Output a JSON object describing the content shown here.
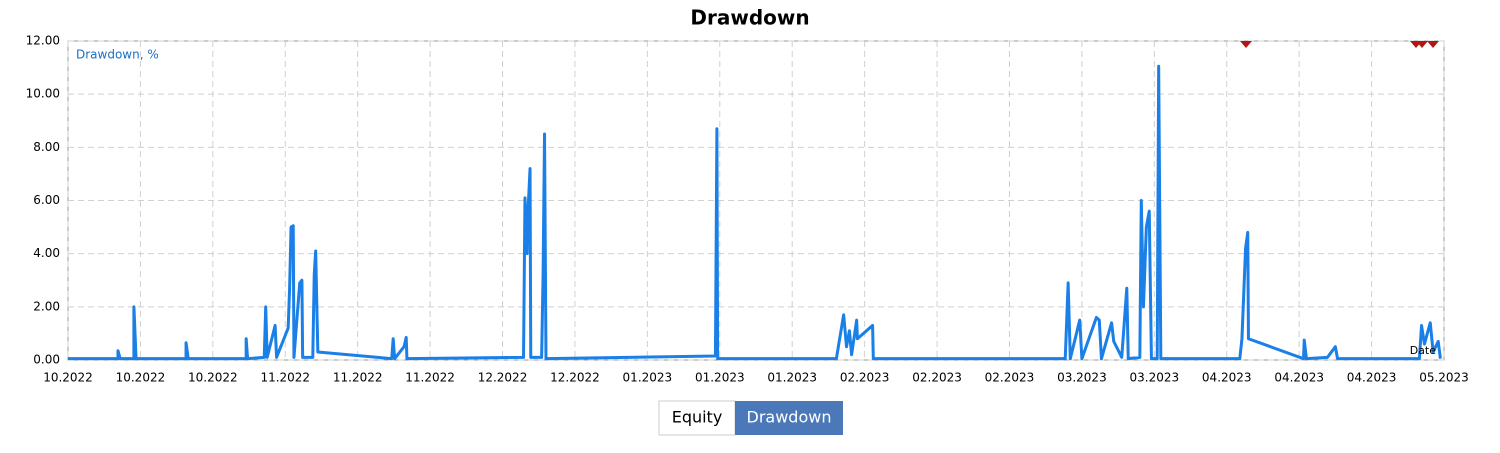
{
  "chart_data": {
    "type": "line",
    "title": "Drawdown",
    "legend": "Drawdown, %",
    "xlabel": "Date",
    "xlim": [
      0,
      19
    ],
    "ylim": [
      0,
      12
    ],
    "yticks": [
      {
        "value": 0,
        "label": "0.00"
      },
      {
        "value": 2,
        "label": "2.00"
      },
      {
        "value": 4,
        "label": "4.00"
      },
      {
        "value": 6,
        "label": "6.00"
      },
      {
        "value": 8,
        "label": "8.00"
      },
      {
        "value": 10,
        "label": "10.00"
      },
      {
        "value": 12,
        "label": "12.00"
      }
    ],
    "xticks": [
      {
        "value": 0,
        "label": "10.2022"
      },
      {
        "value": 1,
        "label": "10.2022"
      },
      {
        "value": 2,
        "label": "10.2022"
      },
      {
        "value": 3,
        "label": "11.2022"
      },
      {
        "value": 4,
        "label": "11.2022"
      },
      {
        "value": 5,
        "label": "11.2022"
      },
      {
        "value": 6,
        "label": "12.2022"
      },
      {
        "value": 7,
        "label": "12.2022"
      },
      {
        "value": 8,
        "label": "01.2023"
      },
      {
        "value": 9,
        "label": "01.2023"
      },
      {
        "value": 10,
        "label": "01.2023"
      },
      {
        "value": 11,
        "label": "02.2023"
      },
      {
        "value": 12,
        "label": "02.2023"
      },
      {
        "value": 13,
        "label": "02.2023"
      },
      {
        "value": 14,
        "label": "03.2023"
      },
      {
        "value": 15,
        "label": "03.2023"
      },
      {
        "value": 16,
        "label": "04.2023"
      },
      {
        "value": 17,
        "label": "04.2023"
      },
      {
        "value": 18,
        "label": "04.2023"
      },
      {
        "value": 19,
        "label": "05.2023"
      }
    ],
    "grid": true,
    "series": [
      {
        "name": "Drawdown, %",
        "color": "#1a7fe6",
        "x": [
          0,
          0.69,
          0.69,
          0.72,
          0.91,
          0.91,
          0.94,
          1.63,
          1.63,
          1.66,
          2.46,
          2.46,
          2.48,
          2.71,
          2.73,
          2.75,
          2.86,
          2.88,
          3.04,
          3.06,
          3.08,
          3.11,
          3.12,
          3.2,
          3.23,
          3.24,
          3.38,
          3.4,
          3.42,
          3.44,
          3.45,
          4.47,
          4.49,
          4.51,
          4.64,
          4.67,
          4.68,
          6.29,
          6.31,
          6.34,
          6.35,
          6.38,
          6.39,
          6.54,
          6.56,
          6.58,
          6.6,
          8.94,
          8.96,
          8.97,
          10.61,
          10.71,
          10.75,
          10.79,
          10.82,
          10.89,
          10.9,
          11.11,
          11.12,
          13.77,
          13.81,
          13.84,
          13.97,
          14.0,
          14.2,
          14.24,
          14.27,
          14.41,
          14.44,
          14.55,
          14.62,
          14.64,
          14.8,
          14.82,
          14.85,
          14.89,
          14.93,
          14.96,
          15.04,
          15.06,
          15.09,
          16.18,
          16.21,
          16.26,
          16.29,
          16.3,
          17.06,
          17.07,
          17.1,
          17.39,
          17.5,
          17.53,
          18.66,
          18.69,
          18.73,
          18.77,
          18.81,
          18.85,
          18.92,
          18.95
        ],
        "values": [
          0.05,
          0.05,
          0.35,
          0.05,
          0.05,
          2.0,
          0.05,
          0.05,
          0.65,
          0.05,
          0.05,
          0.8,
          0.05,
          0.1,
          2.0,
          0.1,
          1.3,
          0.1,
          1.2,
          2.7,
          5.0,
          5.05,
          0.1,
          2.9,
          3.0,
          0.1,
          0.1,
          3.2,
          4.1,
          1.5,
          0.3,
          0.05,
          0.8,
          0.05,
          0.5,
          0.85,
          0.05,
          0.1,
          6.1,
          4.0,
          5.5,
          7.2,
          0.1,
          0.1,
          3.2,
          8.5,
          0.05,
          0.15,
          8.7,
          0.05,
          0.05,
          1.7,
          0.5,
          1.1,
          0.2,
          1.5,
          0.8,
          1.3,
          0.05,
          0.05,
          2.9,
          0.05,
          1.5,
          0.05,
          1.6,
          1.5,
          0.05,
          1.4,
          0.7,
          0.1,
          2.7,
          0.05,
          0.1,
          6.0,
          2.0,
          5.0,
          5.6,
          0.05,
          0.05,
          11.05,
          0.05,
          0.05,
          0.8,
          4.2,
          4.8,
          0.8,
          0.05,
          0.75,
          0.05,
          0.1,
          0.5,
          0.05,
          0.05,
          1.3,
          0.6,
          1.0,
          1.4,
          0.3,
          0.7,
          0.05
        ]
      }
    ]
  },
  "tabs": [
    "Equity",
    "Drawdown"
  ]
}
